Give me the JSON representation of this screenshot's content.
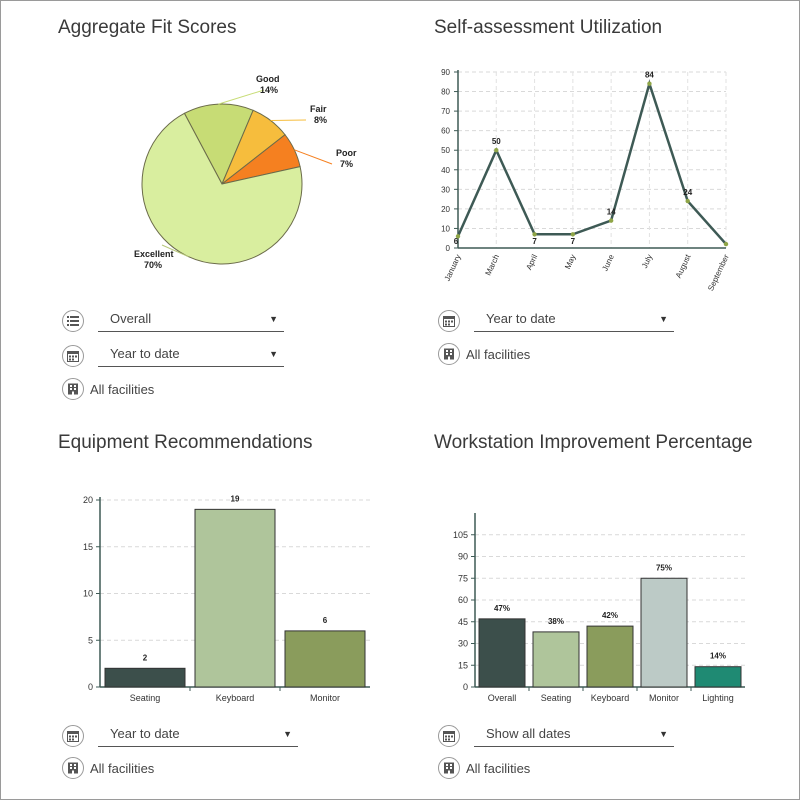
{
  "panels": {
    "fit": {
      "title": "Aggregate Fit Scores",
      "controls": {
        "dropdown1": "Overall",
        "dropdown2": "Year to date",
        "facilities": "All facilities"
      }
    },
    "util": {
      "title": "Self-assessment Utilization",
      "controls": {
        "dropdown1": "Year to date",
        "facilities": "All facilities"
      }
    },
    "equip": {
      "title": "Equipment Recommendations",
      "controls": {
        "dropdown1": "Year to date",
        "facilities": "All facilities"
      }
    },
    "improve": {
      "title": "Workstation Improvement Percentage",
      "controls": {
        "dropdown1": "Show all dates",
        "facilities": "All facilities"
      }
    }
  },
  "icons": {
    "list": "list-icon",
    "calendar": "calendar-icon",
    "building": "building-icon",
    "caret": "caret-down-icon"
  },
  "chart_data": [
    {
      "type": "pie",
      "slices": [
        {
          "label": "Excellent",
          "value": 70,
          "text": "70%",
          "color": "#d9ee9f"
        },
        {
          "label": "Good",
          "value": 14,
          "text": "14%",
          "color": "#c7dc75"
        },
        {
          "label": "Fair",
          "value": 8,
          "text": "8%",
          "color": "#f6bd3d"
        },
        {
          "label": "Poor",
          "value": 7,
          "text": "7%",
          "color": "#f58020"
        }
      ]
    },
    {
      "type": "line",
      "categories": [
        "January",
        "March",
        "April",
        "May",
        "June",
        "July",
        "August",
        "September"
      ],
      "values": [
        6,
        50,
        7,
        7,
        14,
        84,
        24,
        2
      ],
      "value_labels": [
        "6",
        "50",
        "7",
        "7",
        "14",
        "84",
        "24",
        ""
      ],
      "ylim": [
        0,
        90
      ],
      "yticks": [
        0,
        10,
        20,
        30,
        40,
        50,
        60,
        70,
        80,
        90
      ],
      "line_color": "#3e5a55",
      "point_color": "#8fa547",
      "grid": true
    },
    {
      "type": "bar",
      "categories": [
        "Seating",
        "Keyboard",
        "Monitor"
      ],
      "values": [
        2,
        19,
        6
      ],
      "ylim": [
        0,
        20
      ],
      "yticks": [
        0,
        5,
        10,
        15,
        20
      ],
      "colors": [
        "#3c4f4b",
        "#afc59b",
        "#8a9c5c"
      ],
      "grid": true
    },
    {
      "type": "bar",
      "categories": [
        "Overall",
        "Seating",
        "Keyboard",
        "Monitor",
        "Lighting"
      ],
      "values": [
        47,
        38,
        42,
        75,
        14
      ],
      "value_labels": [
        "47%",
        "38%",
        "42%",
        "75%",
        "14%"
      ],
      "ylim": [
        0,
        120
      ],
      "yticks": [
        0,
        15,
        30,
        45,
        60,
        75,
        90,
        105
      ],
      "colors": [
        "#3c4f4b",
        "#afc59b",
        "#8a9c5c",
        "#bccac6",
        "#1f8a73"
      ],
      "grid": true
    }
  ]
}
